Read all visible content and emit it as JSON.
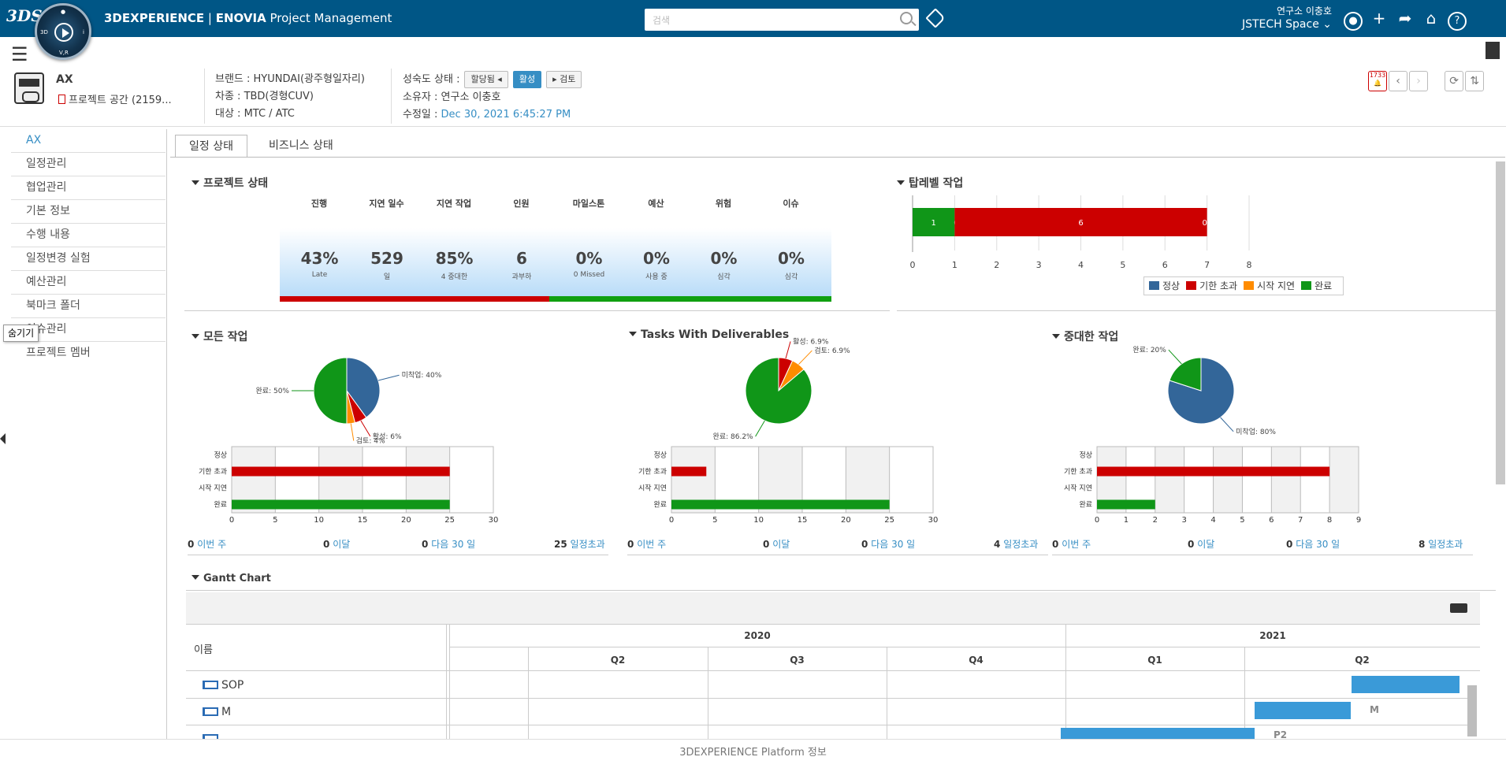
{
  "app": {
    "brand": "3DEXPERIENCE",
    "sep": " | ",
    "product": "ENOVIA",
    "module": "Project Management",
    "logo_text": "3DS"
  },
  "search": {
    "placeholder": "검색"
  },
  "user": {
    "name": "연구소 이충호",
    "space": "JSTECH Space ⌄"
  },
  "object": {
    "name": "AX",
    "space": "프로젝트 공간 (2159...",
    "brand": "브랜드 : HYUNDAI(광주형일자리)",
    "car": "차종 : TBD(경형CUV)",
    "target": "대상 : MTC / ATC",
    "maturity_label": "성숙도 상태 :",
    "state_prev": "할당됨 ◂",
    "state_current": "활성",
    "state_next": "▸ 검토",
    "owner": "소유자 : 연구소 이충호",
    "modified_label": "수정일 :",
    "modified_value": "Dec 30, 2021 6:45:27 PM",
    "alert_count": "1733"
  },
  "sidebar": {
    "items": [
      {
        "label": "AX"
      },
      {
        "label": "일정관리"
      },
      {
        "label": "협업관리"
      },
      {
        "label": "기본 정보"
      },
      {
        "label": "수행 내용"
      },
      {
        "label": "일정변경 실험"
      },
      {
        "label": "예산관리"
      },
      {
        "label": "북마크 폴더"
      },
      {
        "label": "이슈관리"
      },
      {
        "label": "프로젝트 멤버"
      }
    ],
    "tooltip": "숨기기"
  },
  "tabs": [
    {
      "label": "일정 상태"
    },
    {
      "label": "비즈니스 상태"
    }
  ],
  "project_status": {
    "title": "프로젝트 상태",
    "kpis": [
      {
        "label": "진행",
        "value": "43%",
        "sub": "Late",
        "status": "red"
      },
      {
        "label": "지연 일수",
        "value": "529",
        "sub": "일",
        "status": "red"
      },
      {
        "label": "지연 작업",
        "value": "85%",
        "sub": "4 중대한",
        "status": "red"
      },
      {
        "label": "인원",
        "value": "6",
        "sub": "과부하",
        "status": "red"
      },
      {
        "label": "마일스톤",
        "value": "0%",
        "sub": "0 Missed",
        "status": "green"
      },
      {
        "label": "예산",
        "value": "0%",
        "sub": "사용 중",
        "status": "green"
      },
      {
        "label": "위험",
        "value": "0%",
        "sub": "심각",
        "status": "green"
      },
      {
        "label": "이슈",
        "value": "0%",
        "sub": "심각",
        "status": "green"
      }
    ]
  },
  "colors": {
    "normal": "#336699",
    "late": "#cc0000",
    "start_delay": "#ff8c00",
    "done": "#109618",
    "accent": "#368ec4",
    "topbar": "#005686"
  },
  "legend": {
    "normal": "정상",
    "late": "기한 초과",
    "start_delay": "시작 지연",
    "done": "완료"
  },
  "sections": {
    "top_level": "탑레벨 작업",
    "all_tasks": "모든 작업",
    "deliverables": "Tasks With Deliverables",
    "critical": "중대한 작업",
    "gantt": "Gantt Chart"
  },
  "footer_labels": {
    "week": "이번 주",
    "month": "이달",
    "next30": "다음 30 일",
    "overdue": "일정초과"
  },
  "chart_data": [
    {
      "type": "bar",
      "id": "top_level",
      "orientation": "horizontal",
      "stacked": true,
      "categories": [
        ""
      ],
      "series": [
        {
          "name": "완료",
          "values": [
            1
          ]
        },
        {
          "name": "정상",
          "values": [
            0
          ]
        },
        {
          "name": "기한 초과",
          "values": [
            6
          ]
        },
        {
          "name": "시작 지연",
          "values": [
            0
          ]
        }
      ],
      "labels": [
        "1",
        "0",
        "6",
        "0"
      ],
      "xlim": [
        0,
        8
      ],
      "xticks": [
        0,
        1,
        2,
        3,
        4,
        5,
        6,
        7,
        8
      ],
      "legend": "bottom"
    },
    {
      "type": "pie",
      "id": "all_tasks_pie",
      "slices": [
        {
          "label": "미착업",
          "value": 40,
          "text": "미착업: 40%"
        },
        {
          "label": "활성",
          "value": 6,
          "text": "활성: 6%"
        },
        {
          "label": "검토",
          "value": 4,
          "text": "검토: 4%"
        },
        {
          "label": "완료",
          "value": 50,
          "text": "완료: 50%"
        }
      ]
    },
    {
      "type": "bar",
      "id": "all_tasks_bar",
      "orientation": "horizontal",
      "categories": [
        "정상",
        "기한 초과",
        "시작 지연",
        "완료"
      ],
      "values": [
        0,
        25,
        0,
        25
      ],
      "xlim": [
        0,
        30
      ],
      "xticks": [
        0,
        5,
        10,
        15,
        20,
        25,
        30
      ],
      "footer": {
        "week": "0",
        "month": "0",
        "next30": "0",
        "overdue": "25"
      }
    },
    {
      "type": "pie",
      "id": "deliverables_pie",
      "slices": [
        {
          "label": "활성",
          "value": 6.9,
          "text": "활성: 6.9%"
        },
        {
          "label": "검토",
          "value": 6.9,
          "text": "검토: 6.9%"
        },
        {
          "label": "완료",
          "value": 86.2,
          "text": "완료: 86.2%"
        }
      ]
    },
    {
      "type": "bar",
      "id": "deliverables_bar",
      "orientation": "horizontal",
      "categories": [
        "정상",
        "기한 초과",
        "시작 지연",
        "완료"
      ],
      "values": [
        0,
        4,
        0,
        25
      ],
      "xlim": [
        0,
        30
      ],
      "xticks": [
        0,
        5,
        10,
        15,
        20,
        25,
        30
      ],
      "footer": {
        "week": "0",
        "month": "0",
        "next30": "0",
        "overdue": "4"
      }
    },
    {
      "type": "pie",
      "id": "critical_pie",
      "slices": [
        {
          "label": "미착업",
          "value": 80,
          "text": "미착업: 80%"
        },
        {
          "label": "완료",
          "value": 20,
          "text": "완료: 20%"
        }
      ]
    },
    {
      "type": "bar",
      "id": "critical_bar",
      "orientation": "horizontal",
      "categories": [
        "정상",
        "기한 초과",
        "시작 지연",
        "완료"
      ],
      "values": [
        0,
        8,
        0,
        2
      ],
      "xlim": [
        0,
        9
      ],
      "xticks": [
        0,
        1,
        2,
        3,
        4,
        5,
        6,
        7,
        8,
        9
      ],
      "footer": {
        "week": "0",
        "month": "0",
        "next30": "0",
        "overdue": "8"
      }
    }
  ],
  "gantt": {
    "name_header": "이름",
    "years": [
      "2020",
      "2021"
    ],
    "quarters": [
      "Q2",
      "Q3",
      "Q4",
      "Q1",
      "Q2"
    ],
    "rows": [
      {
        "name": "SOP"
      },
      {
        "name": "M"
      },
      {
        "name": ""
      }
    ],
    "bar_labels": [
      "M",
      "P2"
    ]
  },
  "bottom": {
    "text": "3DEXPERIENCE Platform 정보"
  }
}
